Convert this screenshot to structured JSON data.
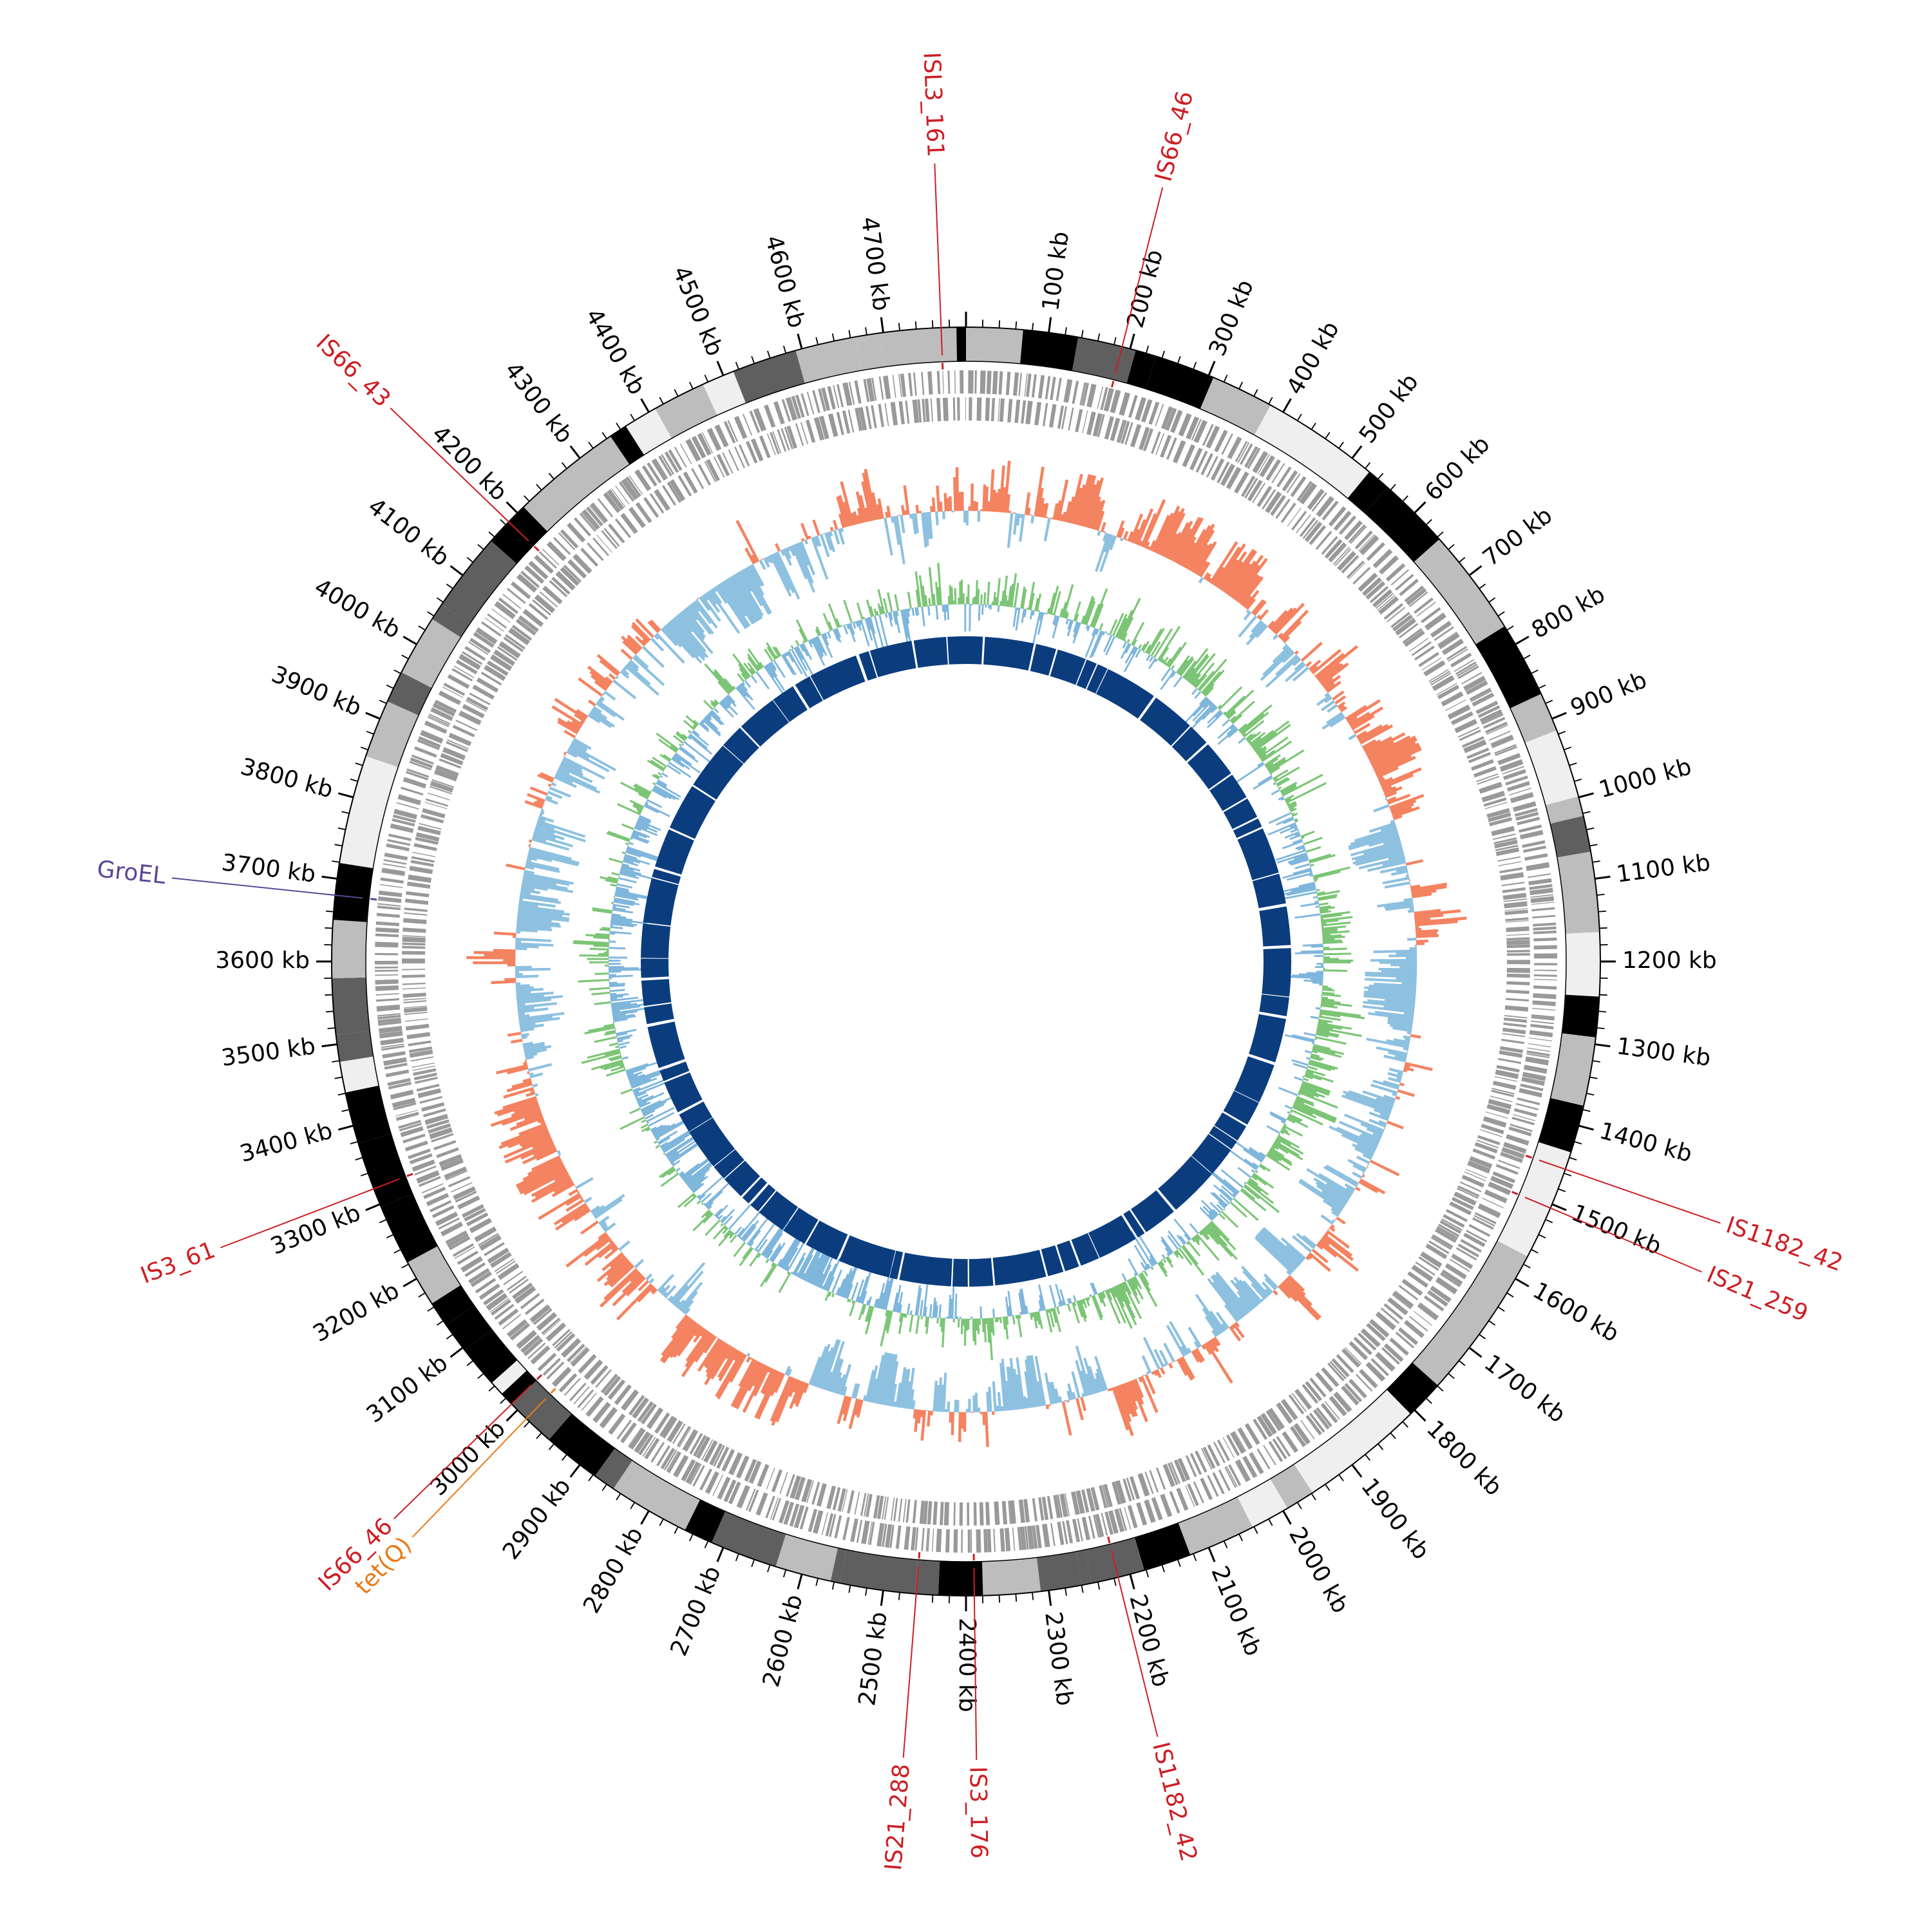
{
  "genome": {
    "length_kb": 4800,
    "tick_unit": "kb",
    "major_tick_step_kb": 100,
    "minor_tick_step_kb": 20
  },
  "scale_labels": [
    "100 kb",
    "200 kb",
    "300 kb",
    "400 kb",
    "500 kb",
    "600 kb",
    "700 kb",
    "800 kb",
    "900 kb",
    "1000 kb",
    "1100 kb",
    "1200 kb",
    "1300 kb",
    "1400 kb",
    "1500 kb",
    "1600 kb",
    "1700 kb",
    "1800 kb",
    "1900 kb",
    "2000 kb",
    "2100 kb",
    "2200 kb",
    "2300 kb",
    "2400 kb",
    "2500 kb",
    "2600 kb",
    "2700 kb",
    "2800 kb",
    "2900 kb",
    "3000 kb",
    "3100 kb",
    "3200 kb",
    "3300 kb",
    "3400 kb",
    "3500 kb",
    "3600 kb",
    "3700 kb",
    "3800 kb",
    "3900 kb",
    "4000 kb",
    "4100 kb",
    "4200 kb",
    "4300 kb",
    "4400 kb",
    "4500 kb",
    "4600 kb",
    "4700 kb"
  ],
  "features": [
    {
      "label": "ISL3_161",
      "position_kb": 4770,
      "type": "IS"
    },
    {
      "label": "IS66_46",
      "position_kb": 190,
      "type": "IS"
    },
    {
      "label": "IS1182_42",
      "position_kb": 1455,
      "type": "IS"
    },
    {
      "label": "IS21_259",
      "position_kb": 1505,
      "type": "IS"
    },
    {
      "label": "IS1182_42",
      "position_kb": 2215,
      "type": "IS"
    },
    {
      "label": "IS3_176",
      "position_kb": 2390,
      "type": "IS"
    },
    {
      "label": "IS21_288",
      "position_kb": 2460,
      "type": "IS"
    },
    {
      "label": "IS66_46",
      "position_kb": 3010,
      "type": "IS"
    },
    {
      "label": "tet(Q)",
      "position_kb": 2985,
      "type": "resistance"
    },
    {
      "label": "IS3_61",
      "position_kb": 3320,
      "type": "IS"
    },
    {
      "label": "GroEL",
      "position_kb": 3680,
      "type": "gene"
    },
    {
      "label": "IS66_43",
      "position_kb": 4185,
      "type": "IS"
    }
  ],
  "colors": {
    "IS": "#cc1f24",
    "resistance": "#e87a17",
    "gene": "#5b4796",
    "cds_track": "#999999",
    "gc_content_above": "#f48361",
    "gc_content_below": "#8ec1e0",
    "gc_skew_positive": "#7cc576",
    "gc_skew_negative": "#7fb6dc",
    "homology_track": "#0b3d7e",
    "band_shades": [
      "#efefef",
      "#bdbdbd",
      "#5f5f5f",
      "#000000"
    ]
  }
}
